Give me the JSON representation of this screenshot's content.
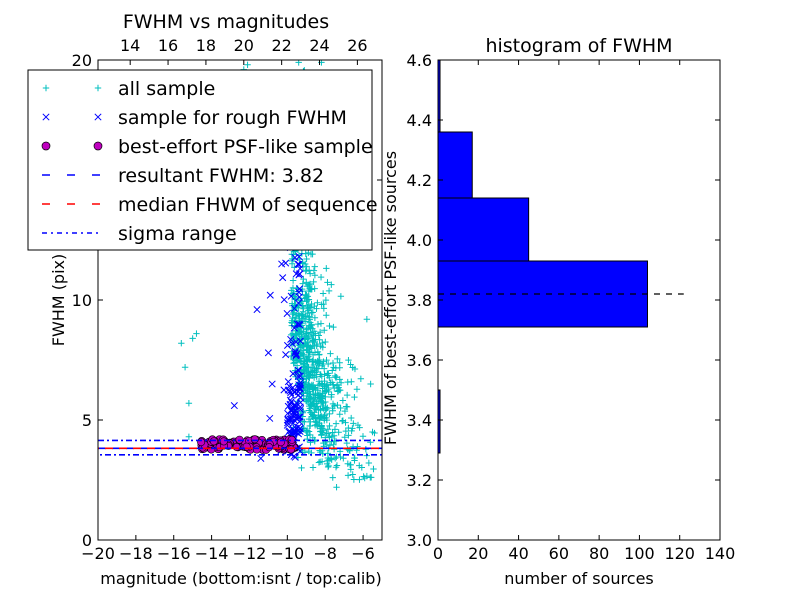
{
  "chart_data": [
    {
      "type": "scatter",
      "title": "FWHM vs magnitudes",
      "xlabel": "magnitude (bottom:isnt / top:calib)",
      "ylabel": "FWHM (pix)",
      "xlim": [
        -20,
        -5
      ],
      "ylim": [
        0,
        20
      ],
      "top_xlim": [
        12.3,
        27.3
      ],
      "x_ticks": [
        -20,
        -18,
        -16,
        -14,
        -12,
        -10,
        -8,
        -6
      ],
      "x_tick_labels": [
        "−20",
        "−18",
        "−16",
        "−14",
        "−12",
        "−10",
        "−8",
        "−6"
      ],
      "top_x_ticks": [
        14,
        16,
        18,
        20,
        22,
        24,
        26
      ],
      "y_ticks": [
        0,
        5,
        10,
        15,
        20
      ],
      "y_tick_labels": [
        "0",
        "5",
        "10",
        "15",
        "20"
      ],
      "grid": false,
      "legend": {
        "position": "upper-left",
        "entries": [
          {
            "label": "all sample",
            "marker": "+",
            "color": "#00bfbf"
          },
          {
            "label": "sample for rough FWHM",
            "marker": "x",
            "color": "#0000ff"
          },
          {
            "label": "best-effort PSF-like sample",
            "marker": "o",
            "color": "#bf00bf"
          },
          {
            "label": "resultant FWHM: 3.82",
            "marker": "dashed",
            "color": "#0000ff"
          },
          {
            "label": "median FHWM of sequence",
            "marker": "dashed",
            "color": "#ff0000"
          },
          {
            "label": "sigma range",
            "marker": "dashdot",
            "color": "#0000ff"
          }
        ]
      },
      "series": [
        {
          "name": "all sample",
          "color": "#00bfbf",
          "points": [
            [
              -15.6,
              8.2
            ],
            [
              -15.0,
              8.4
            ],
            [
              -14.8,
              8.6
            ],
            [
              -15.4,
              7.2
            ],
            [
              -15.2,
              5.7
            ],
            [
              -15.2,
              4.3
            ],
            [
              -14.8,
              15.2
            ],
            [
              -13.4,
              14.6
            ],
            [
              -12.3,
              19.6
            ],
            [
              -12.1,
              19.8
            ],
            [
              -9.4,
              19.9
            ],
            [
              -8.2,
              19.9
            ],
            [
              -6.8,
              14.2
            ],
            [
              -7.2,
              13.8
            ],
            [
              -5.8,
              9.2
            ],
            [
              -5.6,
              6.5
            ],
            [
              -5.5,
              4.5
            ],
            [
              -7.4,
              2.2
            ],
            [
              -7.6,
              2.6
            ],
            [
              -6.2,
              3.1
            ]
          ]
        },
        {
          "name": "sample for rough FWHM",
          "color": "#0000ff",
          "points": [
            [
              -12.8,
              5.6
            ],
            [
              -11.4,
              3.4
            ],
            [
              -10.6,
              12.8
            ],
            [
              -10.9,
              10.2
            ],
            [
              -11.6,
              9.6
            ],
            [
              -10.3,
              11.5
            ],
            [
              -10.8,
              6.5
            ],
            [
              -10.0,
              13.5
            ],
            [
              -9.8,
              15.2
            ],
            [
              -11.0,
              7.8
            ]
          ]
        }
      ],
      "hlines": [
        {
          "name": "resultant FWHM: 3.82",
          "y": 3.82,
          "color": "#0000ff",
          "style": "dashed"
        },
        {
          "name": "median FHWM of sequence",
          "y": 3.82,
          "color": "#ff0000",
          "style": "dashed"
        },
        {
          "name": "sigma range",
          "y": 4.15,
          "color": "#0000ff",
          "style": "dashdot"
        },
        {
          "name": "sigma range",
          "y": 3.55,
          "color": "#0000ff",
          "style": "dashdot"
        }
      ]
    },
    {
      "type": "bar",
      "orientation": "horizontal",
      "title": "histogram of FWHM",
      "xlabel": "number of sources",
      "ylabel": "FWHM of best-effort PSF-like sources",
      "xlim": [
        0,
        140
      ],
      "ylim": [
        3.0,
        4.6
      ],
      "x_ticks": [
        0,
        20,
        40,
        60,
        80,
        100,
        120,
        140
      ],
      "y_ticks": [
        3.0,
        3.2,
        3.4,
        3.6,
        3.8,
        4.0,
        4.2,
        4.4,
        4.6
      ],
      "y_tick_labels": [
        "3.0",
        "3.2",
        "3.4",
        "3.6",
        "3.8",
        "4.0",
        "4.2",
        "4.4",
        "4.6"
      ],
      "grid": false,
      "bins": [
        {
          "low": 3.29,
          "high": 3.5,
          "count": 1
        },
        {
          "low": 3.71,
          "high": 3.93,
          "count": 104
        },
        {
          "low": 3.93,
          "high": 4.14,
          "count": 45
        },
        {
          "low": 4.14,
          "high": 4.36,
          "count": 17
        },
        {
          "low": 4.36,
          "high": 4.6,
          "count": 1
        }
      ],
      "bar_color": "#0000ff",
      "hline": {
        "y": 3.82,
        "x_end": 122,
        "color": "#000000",
        "style": "dashed"
      }
    }
  ]
}
